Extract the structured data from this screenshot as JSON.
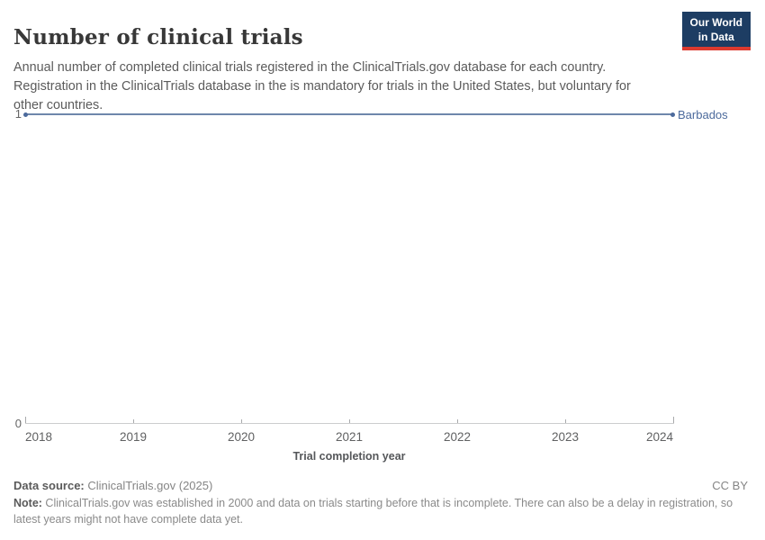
{
  "header": {
    "title": "Number of clinical trials",
    "subtitle": "Annual number of completed clinical trials registered in the ClinicalTrials.gov database for each country. Registration in the ClinicalTrials database in the is mandatory for trials in the United States, but voluntary for other countries."
  },
  "logo": {
    "line1": "Our World",
    "line2": "in Data"
  },
  "chart": {
    "entity_label": "Barbados",
    "axis_label": "Trial completion year"
  },
  "footer": {
    "data_source_label": "Data source:",
    "data_source_value": " ClinicalTrials.gov (2025)",
    "license": "CC BY",
    "note_label": "Note:",
    "note_text": " ClinicalTrials.gov was established in 2000 and data on trials starting before that is incomplete. There can also be a delay in registration, so latest years might not have complete data yet."
  },
  "colors": {
    "series_blue": "#4c6a9c",
    "line_blue": "#6e87ab",
    "logo_navy": "#1d3d63",
    "logo_red": "#dc3a2f",
    "axis_gray": "#cccdce",
    "text_gray": "#5b5b5b"
  },
  "chart_data": {
    "type": "line",
    "title": "Number of clinical trials",
    "x": [
      2018,
      2019,
      2020,
      2021,
      2022,
      2023,
      2024
    ],
    "series": [
      {
        "name": "Barbados",
        "values": [
          1,
          1,
          1,
          1,
          1,
          1,
          1
        ],
        "color": "#4c6a9c"
      }
    ],
    "xlabel": "Trial completion year",
    "ylabel": "",
    "ylim": [
      0,
      1
    ],
    "yticks": [
      0,
      1
    ],
    "grid": false,
    "legend_position": "end-of-line-label"
  }
}
